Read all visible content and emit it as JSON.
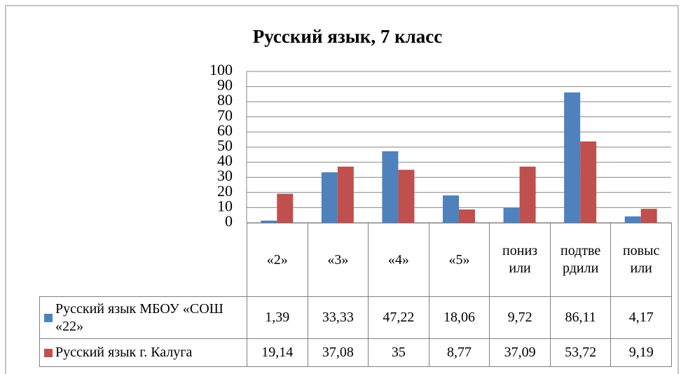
{
  "chart_data": {
    "type": "bar",
    "title": "Русский язык, 7 класс",
    "categories": [
      "«2»",
      "«3»",
      "«4»",
      "«5»",
      "понизили",
      "подтвердили",
      "повысили"
    ],
    "series": [
      {
        "name": "Русский язык МБОУ «СОШ «22»",
        "color": "#4f81bd",
        "values": [
          1.39,
          33.33,
          47.22,
          18.06,
          9.72,
          86.11,
          4.17
        ],
        "value_labels": [
          "1,39",
          "33,33",
          "47,22",
          "18,06",
          "9,72",
          "86,11",
          "4,17"
        ]
      },
      {
        "name": "Русский язык г. Калуга",
        "color": "#c0504d",
        "values": [
          19.14,
          37.08,
          35,
          8.77,
          37.09,
          53.72,
          9.19
        ],
        "value_labels": [
          "19,14",
          "37,08",
          "35",
          "8,77",
          "37,09",
          "53,72",
          "9,19"
        ]
      }
    ],
    "ylim": [
      0,
      100
    ],
    "yticks": [
      0,
      10,
      20,
      30,
      40,
      50,
      60,
      70,
      80,
      90,
      100
    ],
    "grid": true
  }
}
